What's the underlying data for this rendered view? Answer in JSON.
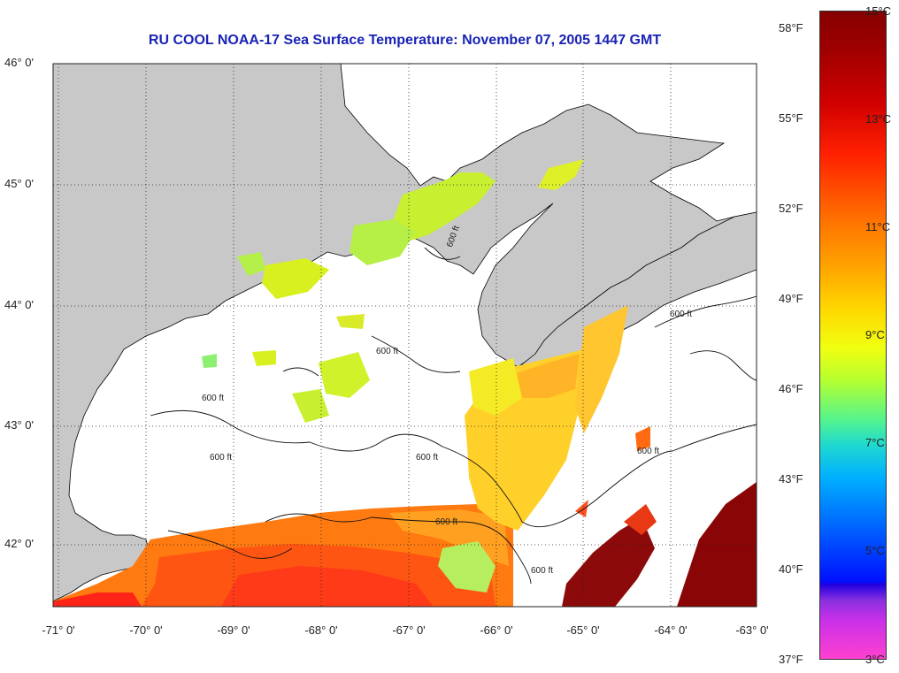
{
  "title": "RU COOL  NOAA-17  Sea Surface Temperature:  November 07, 2005 1447 GMT",
  "map": {
    "lat_labels": [
      "46° 0'",
      "45° 0'",
      "44° 0'",
      "43° 0'",
      "42° 0'"
    ],
    "lon_labels": [
      "-71° 0'",
      "-70° 0'",
      "-69° 0'",
      "-68° 0'",
      "-67° 0'",
      "-66° 0'",
      "-65° 0'",
      "-64° 0'",
      "-63° 0'"
    ],
    "contour_label": "600 ft",
    "colors": {
      "land": "#c8c8c8",
      "cloud": "#ffffff",
      "coast": "#000000"
    }
  },
  "colorbar": {
    "fahrenheit": [
      "58°F",
      "55°F",
      "52°F",
      "49°F",
      "46°F",
      "43°F",
      "40°F",
      "37°F"
    ],
    "celsius": [
      "15°C",
      "13°C",
      "11°C",
      "9°C",
      "7°C",
      "5°C",
      "3°C"
    ]
  }
}
